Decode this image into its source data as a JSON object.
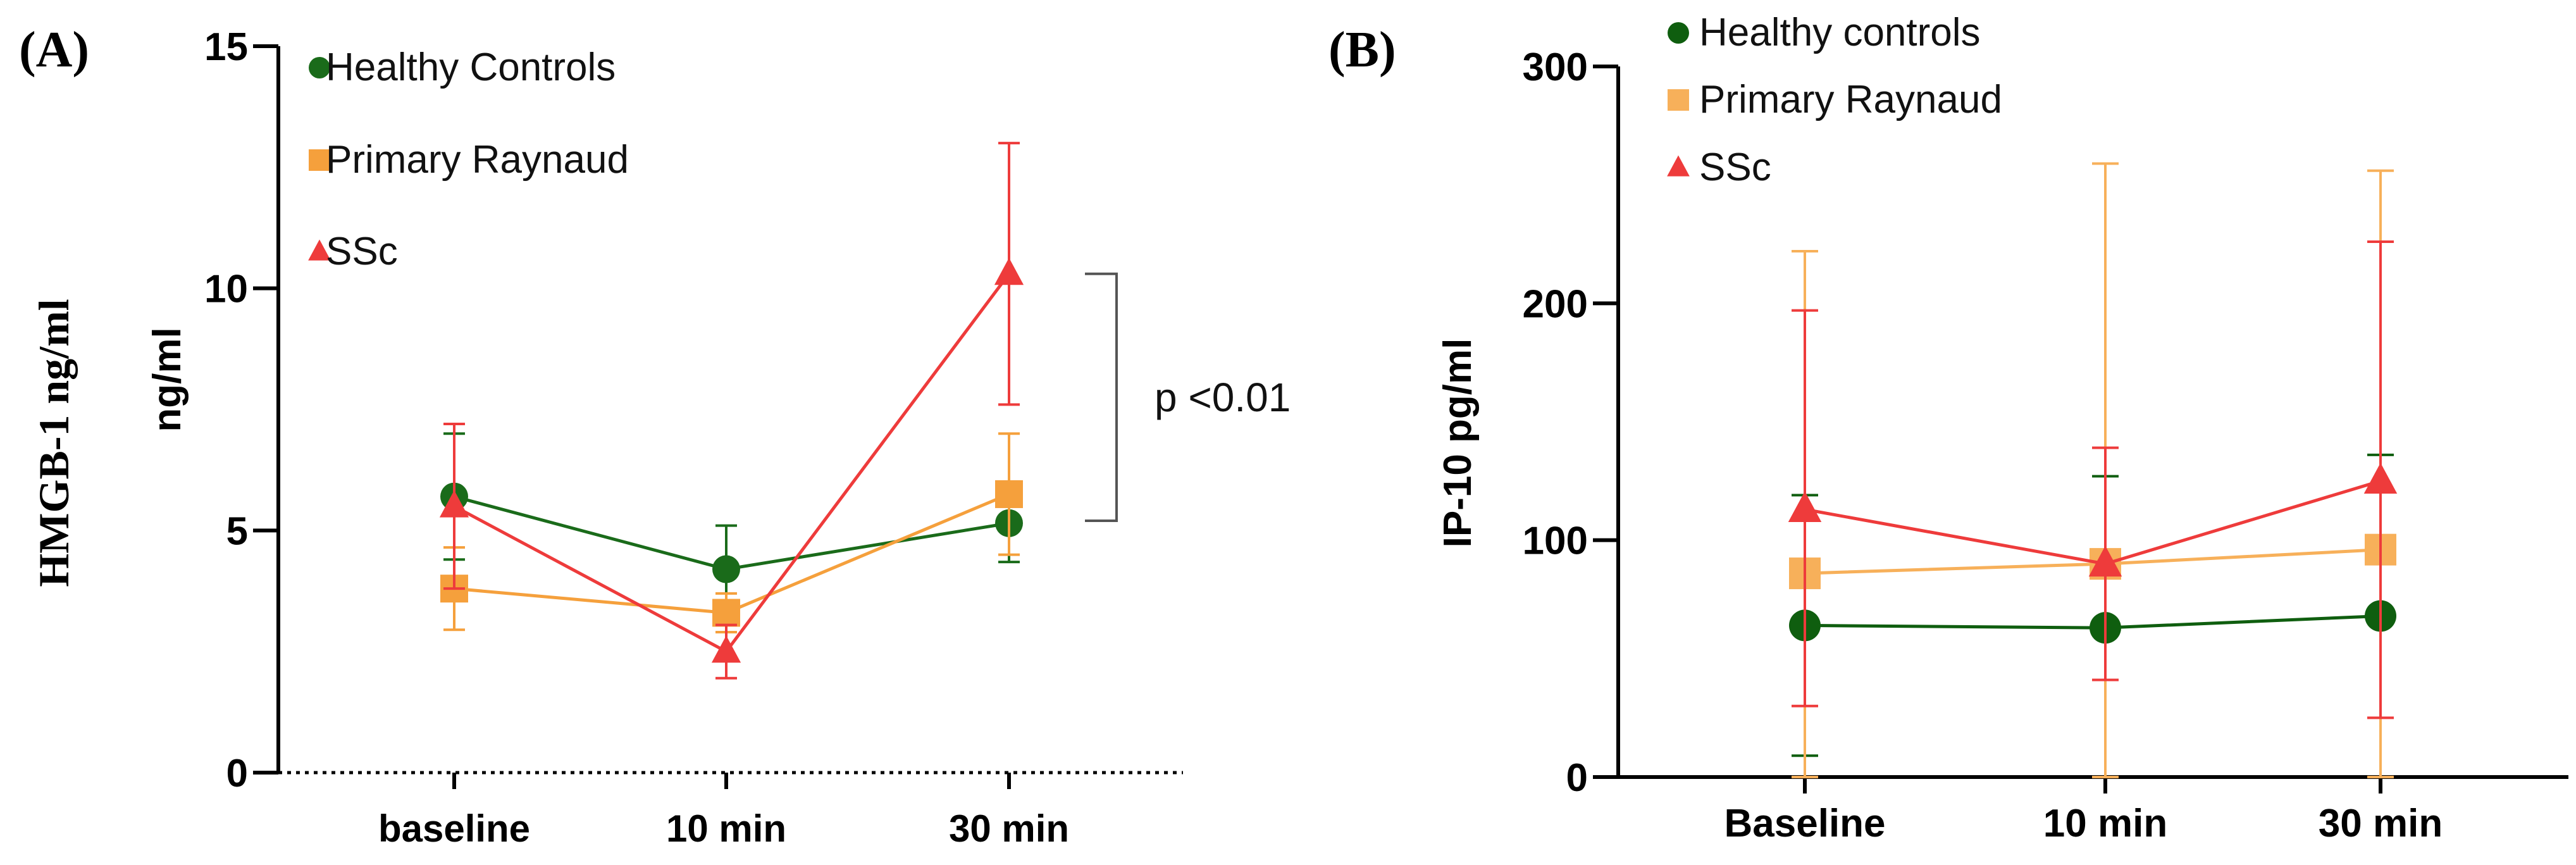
{
  "chart_data": [
    {
      "type": "line",
      "panel_label": "(A)",
      "outer_ylabel": "HMGB-1 ng/ml",
      "ylabel": "ng/ml",
      "xlabel": "",
      "categories": [
        "baseline",
        "10 min",
        "30 min"
      ],
      "ylim": [
        0,
        15
      ],
      "yticks": [
        0,
        5,
        10,
        15
      ],
      "legend_position": "top-left",
      "series": [
        {
          "name": "Healthy Controls",
          "marker": "circle",
          "color": "#1a6b1a",
          "values": [
            5.7,
            4.2,
            5.15
          ],
          "err_low": [
            4.4,
            3.3,
            4.35
          ],
          "err_high": [
            7.0,
            5.1,
            5.95
          ]
        },
        {
          "name": "Primary Raynaud",
          "marker": "square",
          "color": "#f5a03c",
          "values": [
            3.8,
            3.3,
            5.75
          ],
          "err_low": [
            2.95,
            2.9,
            4.5
          ],
          "err_high": [
            4.65,
            3.7,
            7.0
          ]
        },
        {
          "name": "SSc",
          "marker": "triangle",
          "color": "#ee3b3b",
          "values": [
            5.5,
            2.5,
            10.3
          ],
          "err_low": [
            3.8,
            1.95,
            7.6
          ],
          "err_high": [
            7.2,
            3.05,
            13.0
          ]
        }
      ],
      "annotation": {
        "text": "p <0.01",
        "between_values": [
          10.3,
          5.2
        ]
      }
    },
    {
      "type": "line",
      "panel_label": "(B)",
      "ylabel": "IP-10 pg/ml",
      "xlabel": "",
      "categories": [
        "Baseline",
        "10 min",
        "30 min"
      ],
      "ylim": [
        0,
        300
      ],
      "yticks": [
        0,
        100,
        200,
        300
      ],
      "legend_position": "top-left",
      "series": [
        {
          "name": "Healthy controls",
          "marker": "circle",
          "color": "#0f5e0f",
          "values": [
            64,
            63,
            68
          ],
          "err_low": [
            9,
            0,
            0
          ],
          "err_high": [
            119,
            127,
            136
          ]
        },
        {
          "name": "Primary Raynaud",
          "marker": "square",
          "color": "#f7b05a",
          "values": [
            86,
            90,
            96
          ],
          "err_low": [
            0,
            0,
            0
          ],
          "err_high": [
            222,
            259,
            256
          ]
        },
        {
          "name": "SSc",
          "marker": "triangle",
          "color": "#ee3b3b",
          "values": [
            113,
            90,
            125
          ],
          "err_low": [
            30,
            41,
            25
          ],
          "err_high": [
            197,
            139,
            226
          ]
        }
      ]
    }
  ]
}
